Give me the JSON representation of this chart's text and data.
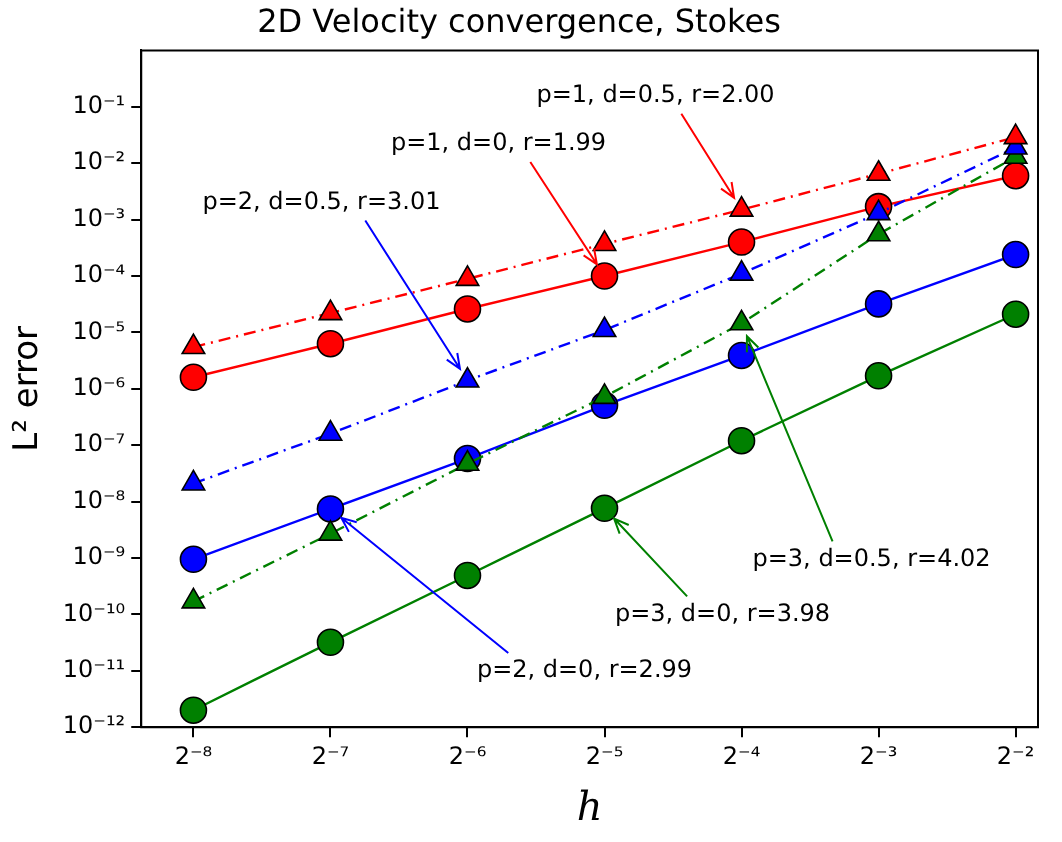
{
  "chart_data": {
    "type": "line",
    "title": "2D Velocity convergence, Stokes",
    "xlabel": "h",
    "ylabel": "L² error",
    "log": "xy",
    "grid": false,
    "legend": false,
    "x": [
      0.00390625,
      0.0078125,
      0.015625,
      0.03125,
      0.0625,
      0.125,
      0.25
    ],
    "xlim": [
      0.003,
      0.28
    ],
    "ylim": [
      1e-12,
      1
    ],
    "xticks": [
      {
        "value": 0.00390625,
        "label": "2⁻⁸"
      },
      {
        "value": 0.0078125,
        "label": "2⁻⁷"
      },
      {
        "value": 0.015625,
        "label": "2⁻⁶"
      },
      {
        "value": 0.03125,
        "label": "2⁻⁵"
      },
      {
        "value": 0.0625,
        "label": "2⁻⁴"
      },
      {
        "value": 0.125,
        "label": "2⁻³"
      },
      {
        "value": 0.25,
        "label": "2⁻²"
      }
    ],
    "yticks": [
      {
        "value": 1e-12,
        "label": "10⁻¹²"
      },
      {
        "value": 1e-11,
        "label": "10⁻¹¹"
      },
      {
        "value": 1e-10,
        "label": "10⁻¹⁰"
      },
      {
        "value": 1e-09,
        "label": "10⁻⁹"
      },
      {
        "value": 1e-08,
        "label": "10⁻⁸"
      },
      {
        "value": 1e-07,
        "label": "10⁻⁷"
      },
      {
        "value": 1e-06,
        "label": "10⁻⁶"
      },
      {
        "value": 1e-05,
        "label": "10⁻⁵"
      },
      {
        "value": 0.0001,
        "label": "10⁻⁴"
      },
      {
        "value": 0.001,
        "label": "10⁻³"
      },
      {
        "value": 0.01,
        "label": "10⁻²"
      },
      {
        "value": 0.1,
        "label": "10⁻¹"
      }
    ],
    "series": [
      {
        "color": "#ff0000",
        "marker": "triangle",
        "line_style": "dashed",
        "values": [
          5.5e-06,
          2.2e-05,
          8.9e-05,
          0.00037,
          0.0015,
          0.0065,
          0.029
        ]
      },
      {
        "color": "#ff0000",
        "marker": "circle",
        "line_style": "solid",
        "values": [
          1.6e-06,
          6.3e-06,
          2.6e-05,
          0.0001,
          0.0004,
          0.0017,
          0.006
        ]
      },
      {
        "color": "#0000ff",
        "marker": "triangle",
        "line_style": "dashed",
        "values": [
          2.1e-08,
          1.6e-07,
          1.4e-06,
          1.1e-05,
          0.00011,
          0.0013,
          0.019
        ]
      },
      {
        "color": "#0000ff",
        "marker": "circle",
        "line_style": "solid",
        "values": [
          9.5e-10,
          7.4e-09,
          5.8e-08,
          5.1e-07,
          3.9e-06,
          3.2e-05,
          0.00024
        ]
      },
      {
        "color": "#008000",
        "marker": "triangle",
        "line_style": "dashed",
        "values": [
          1.7e-10,
          2.7e-09,
          4.7e-08,
          7.2e-07,
          1.45e-05,
          0.00055,
          0.013
        ]
      },
      {
        "color": "#008000",
        "marker": "circle",
        "line_style": "solid",
        "values": [
          2e-12,
          3.2e-11,
          4.9e-10,
          7.6e-09,
          1.2e-07,
          1.7e-06,
          2.1e-05
        ]
      }
    ],
    "annotations": [
      {
        "text": "p=1, d=0.5, r=2.00",
        "x": 0.0625,
        "y": 0.0015
      },
      {
        "text": "p=1, d=0, r=1.99",
        "x": 0.03125,
        "y": 0.0001
      },
      {
        "text": "p=2, d=0.5, r=3.01",
        "x": 0.015625,
        "y": 1.4e-06
      },
      {
        "text": "p=2, d=0, r=2.99",
        "x": 0.0078125,
        "y": 7.4e-09
      },
      {
        "text": "p=3, d=0, r=3.98",
        "x": 0.03125,
        "y": 7.6e-09
      },
      {
        "text": "p=3, d=0.5, r=4.02",
        "x": 0.0625,
        "y": 1.45e-05
      }
    ]
  }
}
